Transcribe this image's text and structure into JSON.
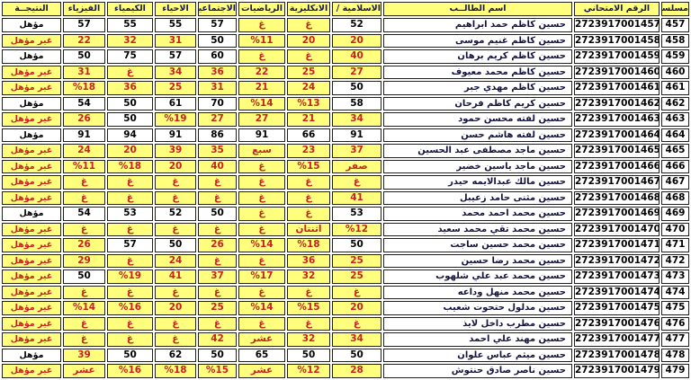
{
  "labels": {
    "qualified": "مؤهل",
    "not_qualified": "غير مؤهل"
  },
  "columns": [
    {
      "key": "serial",
      "label": "مسلسل"
    },
    {
      "key": "exam_no",
      "label": "الرقم الامتحاني"
    },
    {
      "key": "name",
      "label": "اسم الطالــب"
    },
    {
      "key": "islamic",
      "label": "الاسلامية / العربية"
    },
    {
      "key": "english",
      "label": "الانكليزية"
    },
    {
      "key": "math",
      "label": "الرياضيات"
    },
    {
      "key": "social",
      "label": "الاجتماعيات"
    },
    {
      "key": "biology",
      "label": "الاحياء"
    },
    {
      "key": "chemistry",
      "label": "الكيمياء"
    },
    {
      "key": "physics",
      "label": "الفيزياء"
    },
    {
      "key": "result",
      "label": "النتيجــة"
    }
  ],
  "colors": {
    "cell_yellow": "#ffff7d",
    "fail_red": "#c82121",
    "pass_black": "#000000",
    "header_navy": "#16164e",
    "border": "#1f1f1f"
  },
  "rows": [
    {
      "serial": "457",
      "exam_no": "2723917001457",
      "name": "حسين كاظم حمد ابراهيم",
      "islamic": "52",
      "english": "غ",
      "math": "غ",
      "social": "57",
      "biology": "55",
      "chemistry": "55",
      "physics": "57",
      "result": "مؤهل"
    },
    {
      "serial": "458",
      "exam_no": "2723917001458",
      "name": "حسين كاظم غنيم موسى",
      "islamic": "20",
      "english": "20",
      "math": "%11",
      "social": "50",
      "biology": "31",
      "chemistry": "32",
      "physics": "22",
      "result": "غير مؤهل"
    },
    {
      "serial": "459",
      "exam_no": "2723917001459",
      "name": "حسين كاظم كريم برهان",
      "islamic": "40",
      "english": "غ",
      "math": "غ",
      "social": "60",
      "biology": "57",
      "chemistry": "75",
      "physics": "50",
      "result": "مؤهل"
    },
    {
      "serial": "460",
      "exam_no": "2723917001460",
      "name": "حسين كاظم محمد معيوف",
      "islamic": "27",
      "english": "25",
      "math": "22",
      "social": "36",
      "biology": "34",
      "chemistry": "غ",
      "physics": "31",
      "result": "غير مؤهل"
    },
    {
      "serial": "461",
      "exam_no": "2723917001461",
      "name": "حسين كاظم مهدي جبر",
      "islamic": "50",
      "english": "24",
      "math": "21",
      "social": "31",
      "biology": "25",
      "chemistry": "36",
      "physics": "%18",
      "result": "غير مؤهل"
    },
    {
      "serial": "462",
      "exam_no": "2723917001462",
      "name": "حسين كريم كاظم فرحان",
      "islamic": "58",
      "english": "%13",
      "math": "%14",
      "social": "70",
      "biology": "61",
      "chemistry": "50",
      "physics": "54",
      "result": "مؤهل"
    },
    {
      "serial": "463",
      "exam_no": "2723917001463",
      "name": "حسين لفته محسن حمود",
      "islamic": "34",
      "english": "21",
      "math": "27",
      "social": "27",
      "biology": "%19",
      "chemistry": "50",
      "physics": "26",
      "result": "غير مؤهل"
    },
    {
      "serial": "464",
      "exam_no": "2723917001464",
      "name": "حسين لفته هاشم حسن",
      "islamic": "91",
      "english": "66",
      "math": "91",
      "social": "86",
      "biology": "91",
      "chemistry": "94",
      "physics": "91",
      "result": "مؤهل"
    },
    {
      "serial": "465",
      "exam_no": "2723917001465",
      "name": "حسين ماجد مصطفى عبد الحسين",
      "islamic": "37",
      "english": "23",
      "math": "سبع",
      "social": "35",
      "biology": "39",
      "chemistry": "20",
      "physics": "24",
      "result": "غير مؤهل"
    },
    {
      "serial": "466",
      "exam_no": "2723917001466",
      "name": "حسين ماجد ياسين خضير",
      "islamic": "صفر",
      "english": "%15",
      "math": "غ",
      "social": "40",
      "biology": "20",
      "chemistry": "%18",
      "physics": "%11",
      "result": "غير مؤهل"
    },
    {
      "serial": "467",
      "exam_no": "2723917001467",
      "name": "حسين مالك عبدالايمه حيدر",
      "islamic": "غ",
      "english": "غ",
      "math": "غ",
      "social": "غ",
      "biology": "غ",
      "chemistry": "غ",
      "physics": "غ",
      "result": "غير مؤهل"
    },
    {
      "serial": "468",
      "exam_no": "2723917001468",
      "name": "حسين مثنى حامد زعيبل",
      "islamic": "41",
      "english": "غ",
      "math": "غ",
      "social": "غ",
      "biology": "غ",
      "chemistry": "غ",
      "physics": "غ",
      "result": "غير مؤهل"
    },
    {
      "serial": "469",
      "exam_no": "2723917001469",
      "name": "حسين محمد احمد محمد",
      "islamic": "53",
      "english": "غ",
      "math": "غ",
      "social": "50",
      "biology": "52",
      "chemistry": "53",
      "physics": "54",
      "result": "مؤهل"
    },
    {
      "serial": "470",
      "exam_no": "2723917001470",
      "name": "حسين محمد تقي محمد سعيد",
      "islamic": "%12",
      "english": "اثنتان",
      "math": "غ",
      "social": "غ",
      "biology": "غ",
      "chemistry": "غ",
      "physics": "غ",
      "result": "غير مؤهل"
    },
    {
      "serial": "471",
      "exam_no": "2723917001471",
      "name": "حسين محمد حسين ساجت",
      "islamic": "50",
      "english": "%18",
      "math": "%14",
      "social": "26",
      "biology": "50",
      "chemistry": "57",
      "physics": "26",
      "result": "غير مؤهل"
    },
    {
      "serial": "472",
      "exam_no": "2723917001472",
      "name": "حسين محمد رضا حسين",
      "islamic": "25",
      "english": "36",
      "math": "غ",
      "social": "غ",
      "biology": "24",
      "chemistry": "غ",
      "physics": "29",
      "result": "غير مؤهل"
    },
    {
      "serial": "473",
      "exam_no": "2723917001473",
      "name": "حسين محمد عبد علي شلهوب",
      "islamic": "25",
      "english": "32",
      "math": "%17",
      "social": "37",
      "biology": "41",
      "chemistry": "%19",
      "physics": "50",
      "result": "غير مؤهل"
    },
    {
      "serial": "474",
      "exam_no": "2723917001474",
      "name": "حسين محمد منهل وداعه",
      "islamic": "غ",
      "english": "غ",
      "math": "غ",
      "social": "غ",
      "biology": "غ",
      "chemistry": "غ",
      "physics": "غ",
      "result": "غير مؤهل"
    },
    {
      "serial": "475",
      "exam_no": "2723917001475",
      "name": "حسين مدلول حتحوت شعيب",
      "islamic": "20",
      "english": "%15",
      "math": "%14",
      "social": "25",
      "biology": "20",
      "chemistry": "%16",
      "physics": "%14",
      "result": "غير مؤهل"
    },
    {
      "serial": "476",
      "exam_no": "2723917001476",
      "name": "حسين مطرب داخل لايذ",
      "islamic": "غ",
      "english": "غ",
      "math": "غ",
      "social": "غ",
      "biology": "غ",
      "chemistry": "غ",
      "physics": "غ",
      "result": "غير مؤهل"
    },
    {
      "serial": "477",
      "exam_no": "2723917001477",
      "name": "حسين مهند علي احمد",
      "islamic": "34",
      "english": "32",
      "math": "عشر",
      "social": "42",
      "biology": "غ",
      "chemistry": "غ",
      "physics": "غ",
      "result": "غير مؤهل"
    },
    {
      "serial": "478",
      "exam_no": "2723917001478",
      "name": "حسين ميثم عباس علوان",
      "islamic": "50",
      "english": "50",
      "math": "65",
      "social": "50",
      "biology": "62",
      "chemistry": "50",
      "physics": "39",
      "result": "مؤهل"
    },
    {
      "serial": "479",
      "exam_no": "2723917001479",
      "name": "حسين ناصر صادق حنتوش",
      "islamic": "28",
      "english": "%12",
      "math": "عشر",
      "social": "%15",
      "biology": "%18",
      "chemistry": "%16",
      "physics": "عشر",
      "result": "غير مؤهل"
    }
  ]
}
